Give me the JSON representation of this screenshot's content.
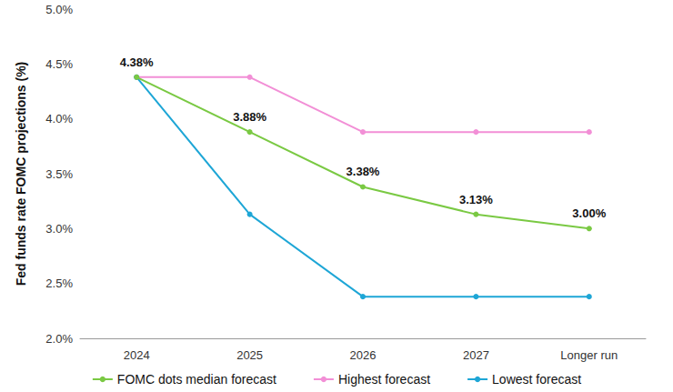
{
  "chart_data": {
    "type": "line",
    "y_label": "Fed funds rate FOMC projections (%)",
    "categories": [
      "2024",
      "2025",
      "2026",
      "2027",
      "Longer run"
    ],
    "series": [
      {
        "name": "FOMC dots median forecast",
        "color": "#7ac943",
        "marker": "circle",
        "line_style": "solid",
        "values": [
          4.38,
          3.88,
          3.38,
          3.13,
          3.0
        ],
        "value_labels": [
          "4.38%",
          "3.88%",
          "3.38%",
          "3.13%",
          "3.00%"
        ]
      },
      {
        "name": "Highest forecast",
        "color": "#f28fd6",
        "marker": "circle",
        "line_style": "solid",
        "values": [
          4.38,
          4.38,
          3.88,
          3.88,
          3.88
        ]
      },
      {
        "name": "Lowest forecast",
        "color": "#1ea6d6",
        "marker": "circle",
        "line_style": "solid",
        "values": [
          4.38,
          3.13,
          2.38,
          2.38,
          2.38
        ]
      }
    ],
    "ylim": [
      2.0,
      5.0
    ],
    "yticks": [
      {
        "value": 2.0,
        "label": "2.0%"
      },
      {
        "value": 2.5,
        "label": "2.5%"
      },
      {
        "value": 3.0,
        "label": "3.0%"
      },
      {
        "value": 3.5,
        "label": "3.5%"
      },
      {
        "value": 4.0,
        "label": "4.0%"
      },
      {
        "value": 4.5,
        "label": "4.5%"
      },
      {
        "value": 5.0,
        "label": "5.0%"
      }
    ],
    "grid": false,
    "legend": "bottom",
    "data_labels": true
  }
}
